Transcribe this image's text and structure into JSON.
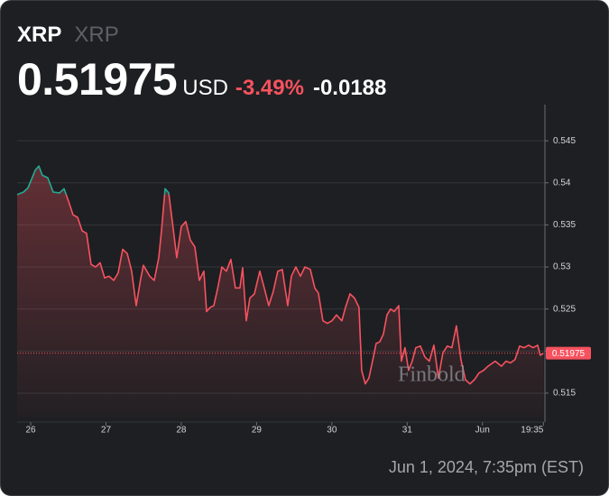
{
  "header": {
    "symbol": "XRP",
    "name": "XRP",
    "price": "0.51975",
    "currency": "USD",
    "change_percent": "-3.49%",
    "change": "-0.0188"
  },
  "footer": {
    "timestamp": "Jun 1, 2024, 7:35pm (EST)"
  },
  "watermark": "Finbold",
  "chart_data": {
    "type": "line",
    "color": "#f7525f",
    "up_color": "#22ab94",
    "grid": true,
    "xlim": [
      25.82,
      32.83
    ],
    "xticks": [
      26,
      27,
      28,
      29,
      30,
      31,
      {
        "value": 32,
        "label": "Jun"
      },
      {
        "value": 32.81,
        "label": "19:35"
      }
    ],
    "ylim": [
      0.5121,
      0.5493
    ],
    "yticks": [
      0.515,
      0.52,
      0.525,
      0.53,
      0.535,
      0.54,
      0.545
    ],
    "x": [
      25.82,
      25.904,
      25.964,
      26.024,
      26.06,
      26.108,
      26.155,
      26.227,
      26.299,
      26.383,
      26.443,
      26.503,
      26.563,
      26.623,
      26.683,
      26.742,
      26.802,
      26.862,
      26.922,
      26.982,
      27.042,
      27.102,
      27.162,
      27.222,
      27.282,
      27.341,
      27.401,
      27.461,
      27.497,
      27.581,
      27.641,
      27.701,
      27.737,
      27.785,
      27.833,
      27.881,
      27.94,
      28.0,
      28.06,
      28.12,
      28.18,
      28.24,
      28.3,
      28.336,
      28.384,
      28.432,
      28.48,
      28.539,
      28.599,
      28.659,
      28.719,
      28.779,
      28.815,
      28.863,
      28.911,
      28.971,
      29.043,
      29.102,
      29.162,
      29.222,
      29.282,
      29.342,
      29.414,
      29.462,
      29.522,
      29.582,
      29.642,
      29.714,
      29.773,
      29.821,
      29.881,
      29.941,
      30.001,
      30.061,
      30.133,
      30.181,
      30.241,
      30.301,
      30.36,
      30.396,
      30.444,
      30.492,
      30.54,
      30.588,
      30.636,
      30.684,
      30.732,
      30.78,
      30.828,
      30.888,
      30.923,
      30.971,
      31.019,
      31.067,
      31.115,
      31.175,
      31.235,
      31.295,
      31.355,
      31.415,
      31.475,
      31.534,
      31.594,
      31.654,
      31.714,
      31.774,
      31.834,
      31.894,
      31.954,
      32.014,
      32.074,
      32.169,
      32.253,
      32.313,
      32.373,
      32.433,
      32.493,
      32.553,
      32.613,
      32.673,
      32.733,
      32.768,
      32.81
    ],
    "values": [
      0.5386,
      0.5389,
      0.5394,
      0.5407,
      0.5415,
      0.542,
      0.5409,
      0.5406,
      0.5389,
      0.5388,
      0.5393,
      0.5378,
      0.5362,
      0.5359,
      0.5343,
      0.534,
      0.5303,
      0.53,
      0.5305,
      0.5287,
      0.5289,
      0.5284,
      0.5293,
      0.5321,
      0.5316,
      0.5295,
      0.5254,
      0.5286,
      0.5302,
      0.5289,
      0.5284,
      0.5311,
      0.5343,
      0.5393,
      0.5388,
      0.5354,
      0.5311,
      0.5348,
      0.5354,
      0.5332,
      0.5324,
      0.5284,
      0.5295,
      0.5247,
      0.5252,
      0.5254,
      0.5273,
      0.53,
      0.5295,
      0.5309,
      0.5275,
      0.5275,
      0.5299,
      0.5236,
      0.5263,
      0.5268,
      0.5295,
      0.5275,
      0.5254,
      0.5271,
      0.5295,
      0.5297,
      0.5254,
      0.5289,
      0.53,
      0.5289,
      0.53,
      0.5297,
      0.5275,
      0.5269,
      0.5236,
      0.5233,
      0.5236,
      0.5243,
      0.5236,
      0.5252,
      0.5268,
      0.5263,
      0.5252,
      0.5177,
      0.5161,
      0.5168,
      0.5188,
      0.5209,
      0.5211,
      0.522,
      0.5243,
      0.525,
      0.5247,
      0.5254,
      0.5188,
      0.5204,
      0.5177,
      0.5188,
      0.5204,
      0.5206,
      0.5193,
      0.5188,
      0.5207,
      0.5168,
      0.5198,
      0.5206,
      0.5204,
      0.523,
      0.519,
      0.5166,
      0.5161,
      0.5166,
      0.5174,
      0.5177,
      0.5182,
      0.5188,
      0.5182,
      0.5188,
      0.5186,
      0.519,
      0.5206,
      0.5204,
      0.5207,
      0.5204,
      0.5207,
      0.5195,
      0.51975
    ]
  }
}
